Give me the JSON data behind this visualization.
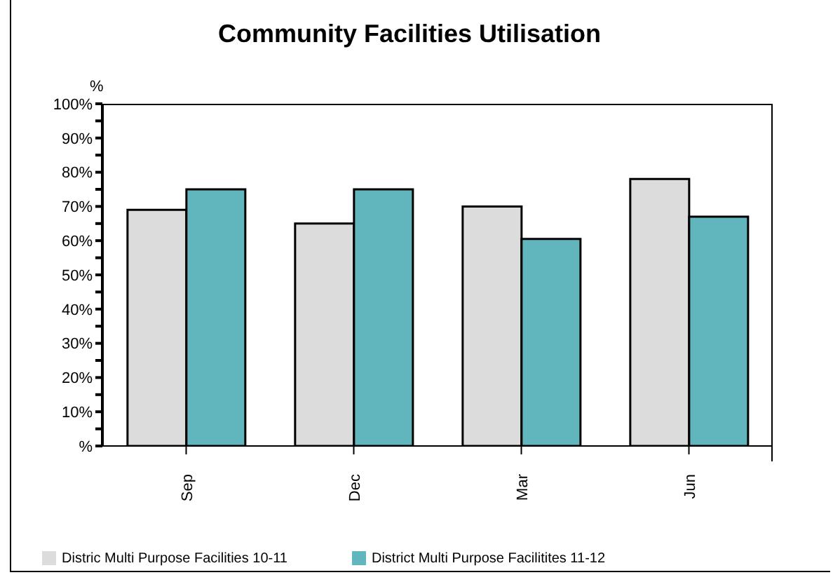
{
  "chart_data": {
    "type": "bar",
    "title": "Community Facilities Utilisation",
    "ylabel": "%",
    "categories": [
      "Sep",
      "Dec",
      "Mar",
      "Jun"
    ],
    "series": [
      {
        "name": "Distric Multi Purpose Facilities 10-11",
        "color": "#dcdcdc",
        "values": [
          69,
          65,
          70,
          78
        ]
      },
      {
        "name": "District Multi Purpose Facilitites 11-12",
        "color": "#60b6bc",
        "values": [
          75,
          75,
          60.5,
          67
        ]
      }
    ],
    "ylim": [
      0,
      100
    ],
    "yticks": [
      {
        "value": 0,
        "label": "%"
      },
      {
        "value": 5,
        "label": null
      },
      {
        "value": 10,
        "label": "10%"
      },
      {
        "value": 15,
        "label": null
      },
      {
        "value": 20,
        "label": "20%"
      },
      {
        "value": 25,
        "label": null
      },
      {
        "value": 30,
        "label": "30%"
      },
      {
        "value": 35,
        "label": null
      },
      {
        "value": 40,
        "label": "40%"
      },
      {
        "value": 45,
        "label": null
      },
      {
        "value": 50,
        "label": "50%"
      },
      {
        "value": 55,
        "label": null
      },
      {
        "value": 60,
        "label": "60%"
      },
      {
        "value": 65,
        "label": null
      },
      {
        "value": 70,
        "label": "70%"
      },
      {
        "value": 75,
        "label": null
      },
      {
        "value": 80,
        "label": "80%"
      },
      {
        "value": 85,
        "label": null
      },
      {
        "value": 90,
        "label": "90%"
      },
      {
        "value": 95,
        "label": null
      },
      {
        "value": 100,
        "label": "100%"
      }
    ],
    "grid": false,
    "legend": "bottom"
  }
}
